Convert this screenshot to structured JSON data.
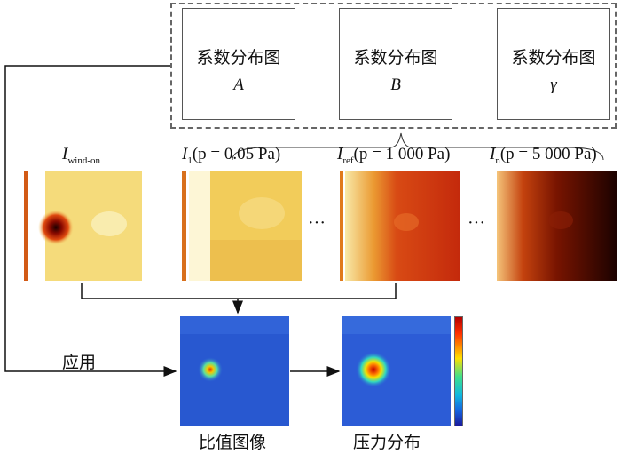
{
  "coefficient_maps": [
    {
      "title": "系数分布图",
      "symbol": "A"
    },
    {
      "title": "系数分布图",
      "symbol": "B"
    },
    {
      "title": "系数分布图",
      "symbol": "γ"
    }
  ],
  "images": {
    "wind_on": {
      "symbol": "I",
      "subscript": "wind-on"
    },
    "i1": {
      "symbol": "I",
      "subscript": "1",
      "condition": "(p = 0.05 Pa)"
    },
    "iref": {
      "symbol": "I",
      "subscript": "ref",
      "condition": "(p = 1 000 Pa)"
    },
    "in": {
      "symbol": "I",
      "subscript": "n",
      "condition": "(p = 5 000 Pa)"
    }
  },
  "ellipsis": "···",
  "apply_label": "应用",
  "ratio_image_caption": "比值图像",
  "pressure_caption": "压力分布"
}
